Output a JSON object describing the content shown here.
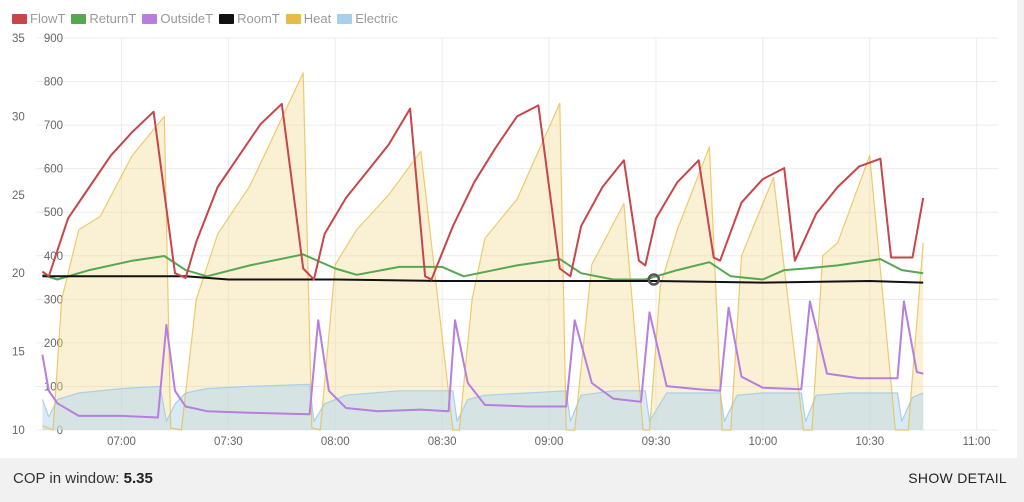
{
  "legend": [
    {
      "name": "FlowT",
      "color": "#c8454a"
    },
    {
      "name": "ReturnT",
      "color": "#55a84f"
    },
    {
      "name": "OutsideT",
      "color": "#b77ee0"
    },
    {
      "name": "RoomT",
      "color": "#111111"
    },
    {
      "name": "Heat",
      "color": "#e8bb45"
    },
    {
      "name": "Electric",
      "color": "#a9cfea"
    }
  ],
  "footer": {
    "cop_label": "COP in window:",
    "cop_value": "5.35",
    "detail_label": "SHOW DETAIL"
  },
  "chart_data": {
    "type": "line",
    "x_unit": "hours",
    "xlim": [
      6.6,
      11.1
    ],
    "x_ticks": [
      7.0,
      7.5,
      8.0,
      8.5,
      9.0,
      9.5,
      10.0,
      10.5,
      11.0
    ],
    "x_tick_labels": [
      "07:00",
      "07:30",
      "08:00",
      "08:30",
      "09:00",
      "09:30",
      "10:00",
      "10:30",
      "11:00"
    ],
    "y_left": {
      "ylim": [
        10,
        35
      ],
      "ticks": [
        10,
        15,
        20,
        25,
        30,
        35
      ]
    },
    "y_right": {
      "ylim": [
        0,
        900
      ],
      "ticks": [
        0,
        100,
        200,
        300,
        400,
        500,
        600,
        700,
        800,
        900
      ]
    },
    "grid": true,
    "legend_position": "top-left",
    "cursor_marker": {
      "x": 9.49,
      "y": 19.6
    },
    "series": [
      {
        "name": "FlowT",
        "axis": "left",
        "color": "#c8454a",
        "x": [
          6.63,
          6.66,
          6.75,
          6.85,
          6.95,
          7.05,
          7.15,
          7.25,
          7.3,
          7.35,
          7.45,
          7.55,
          7.65,
          7.75,
          7.85,
          7.9,
          7.95,
          8.05,
          8.15,
          8.25,
          8.35,
          8.42,
          8.45,
          8.55,
          8.65,
          8.75,
          8.85,
          8.95,
          9.05,
          9.1,
          9.15,
          9.25,
          9.35,
          9.42,
          9.45,
          9.5,
          9.6,
          9.7,
          9.77,
          9.8,
          9.9,
          10.0,
          10.1,
          10.15,
          10.25,
          10.35,
          10.45,
          10.55,
          10.6,
          10.7,
          10.75
        ],
        "y": [
          20.1,
          19.8,
          23.5,
          25.5,
          27.5,
          29,
          30.3,
          20,
          19.7,
          22,
          25.5,
          27.5,
          29.5,
          30.8,
          20.3,
          19.6,
          22.5,
          24.8,
          26.5,
          28.2,
          30.5,
          19.8,
          19.6,
          23,
          25.8,
          28,
          30,
          30.7,
          20.3,
          19.8,
          23,
          25.5,
          27.2,
          20.8,
          20.5,
          23.5,
          25.8,
          27.2,
          21,
          20.8,
          24.5,
          26,
          26.7,
          20.8,
          23.8,
          25.5,
          26.8,
          27.3,
          21,
          21,
          24.8
        ]
      },
      {
        "name": "ReturnT",
        "axis": "left",
        "color": "#55a84f",
        "x": [
          6.63,
          6.7,
          6.85,
          7.05,
          7.2,
          7.3,
          7.4,
          7.6,
          7.85,
          8.0,
          8.1,
          8.3,
          8.5,
          8.6,
          8.85,
          9.05,
          9.15,
          9.3,
          9.45,
          9.6,
          9.75,
          9.85,
          10.0,
          10.1,
          10.2,
          10.35,
          10.55,
          10.65,
          10.75
        ],
        "y": [
          19.9,
          19.6,
          20.2,
          20.8,
          21.1,
          20.2,
          19.8,
          20.5,
          21.2,
          20.3,
          19.9,
          20.4,
          20.4,
          19.8,
          20.5,
          20.9,
          20,
          19.6,
          19.6,
          20.2,
          20.7,
          19.8,
          19.6,
          20.2,
          20.3,
          20.5,
          20.9,
          20.2,
          20.0
        ]
      },
      {
        "name": "RoomT",
        "axis": "left",
        "color": "#111111",
        "x": [
          6.63,
          7.3,
          7.5,
          8.0,
          8.5,
          9.0,
          9.5,
          10.0,
          10.5,
          10.75
        ],
        "y": [
          19.8,
          19.8,
          19.6,
          19.6,
          19.5,
          19.5,
          19.5,
          19.4,
          19.5,
          19.4
        ]
      },
      {
        "name": "OutsideT",
        "axis": "left",
        "color": "#b77ee0",
        "x": [
          6.63,
          6.66,
          6.7,
          6.8,
          7.0,
          7.17,
          7.21,
          7.25,
          7.3,
          7.4,
          7.6,
          7.88,
          7.92,
          7.97,
          8.05,
          8.2,
          8.4,
          8.53,
          8.56,
          8.62,
          8.7,
          8.9,
          9.08,
          9.12,
          9.2,
          9.3,
          9.43,
          9.47,
          9.55,
          9.7,
          9.8,
          9.84,
          9.9,
          10.0,
          10.18,
          10.22,
          10.3,
          10.45,
          10.63,
          10.66,
          10.72,
          10.75
        ],
        "y": [
          14.8,
          12.5,
          11.7,
          10.9,
          10.9,
          10.8,
          16.7,
          12.5,
          11.5,
          11.2,
          11.1,
          11.0,
          17.0,
          12.5,
          11.4,
          11.2,
          11.3,
          11.2,
          17.0,
          13.0,
          11.6,
          11.5,
          11.5,
          17.0,
          13.0,
          12.0,
          11.8,
          17.5,
          12.8,
          12.6,
          12.5,
          17.8,
          13.4,
          12.7,
          12.6,
          18.2,
          13.6,
          13.3,
          13.3,
          18.2,
          13.7,
          13.6
        ]
      },
      {
        "name": "Heat",
        "axis": "right",
        "color": "#e8bb45",
        "x": [
          6.63,
          6.68,
          6.72,
          6.8,
          6.9,
          7.05,
          7.2,
          7.23,
          7.28,
          7.35,
          7.45,
          7.6,
          7.85,
          7.89,
          7.93,
          8.0,
          8.1,
          8.25,
          8.4,
          8.55,
          8.58,
          8.64,
          8.7,
          8.85,
          9.05,
          9.08,
          9.12,
          9.2,
          9.35,
          9.44,
          9.47,
          9.52,
          9.6,
          9.75,
          9.81,
          9.85,
          9.9,
          10.05,
          10.19,
          10.23,
          10.28,
          10.35,
          10.5,
          10.62,
          10.68,
          10.75
        ],
        "y": [
          10,
          0,
          300,
          460,
          490,
          630,
          720,
          5,
          0,
          300,
          450,
          560,
          820,
          5,
          0,
          380,
          460,
          540,
          640,
          0,
          0,
          300,
          440,
          530,
          750,
          0,
          0,
          380,
          520,
          0,
          0,
          330,
          460,
          650,
          0,
          0,
          400,
          580,
          0,
          0,
          400,
          430,
          630,
          0,
          0,
          430
        ]
      },
      {
        "name": "Electric",
        "axis": "right",
        "color": "#a9cfea",
        "x": [
          6.63,
          6.66,
          6.7,
          6.8,
          7.0,
          7.18,
          7.21,
          7.25,
          7.3,
          7.4,
          7.6,
          7.88,
          7.9,
          7.95,
          8.05,
          8.3,
          8.55,
          8.57,
          8.62,
          8.7,
          8.9,
          9.08,
          9.1,
          9.15,
          9.3,
          9.45,
          9.47,
          9.55,
          9.8,
          9.82,
          9.88,
          10.0,
          10.18,
          10.2,
          10.25,
          10.4,
          10.63,
          10.65,
          10.7,
          10.75
        ],
        "y": [
          70,
          30,
          70,
          85,
          95,
          100,
          20,
          60,
          85,
          95,
          100,
          105,
          20,
          60,
          80,
          90,
          90,
          20,
          70,
          80,
          85,
          90,
          20,
          80,
          90,
          90,
          20,
          85,
          85,
          20,
          80,
          85,
          85,
          20,
          80,
          85,
          85,
          20,
          75,
          85
        ]
      }
    ]
  }
}
